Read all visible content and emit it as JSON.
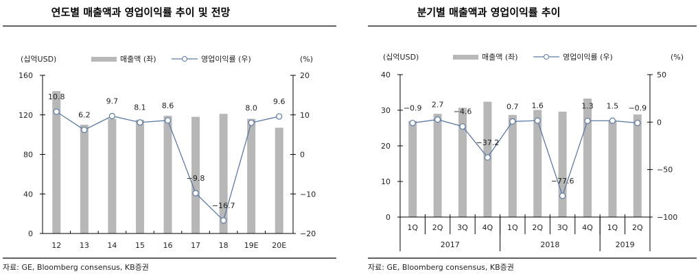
{
  "source_left": "자료: GE, Bloomberg consensus, KB증권",
  "source_right": "자료: GE, Bloomberg consensus, KB증권",
  "colors": {
    "bar": "#b7b7b7",
    "line": "#5b7aa3",
    "marker_fill": "#ffffff"
  },
  "chart_data": [
    {
      "type": "bar+line",
      "title": "연도별 매출액과 영업이익률 추이 및 전망",
      "y_left_unit": "(십억USD)",
      "y_right_unit": "(%)",
      "legend": [
        "매출액 (좌)",
        "영업이익률 (우)"
      ],
      "legend_placement": "top",
      "categories": [
        "12",
        "13",
        "14",
        "15",
        "16",
        "17",
        "18",
        "19E",
        "20E"
      ],
      "series": [
        {
          "name": "매출액 (좌)",
          "axis": "left",
          "values": [
            144,
            110,
            116,
            115,
            119,
            118,
            121,
            116,
            107
          ]
        },
        {
          "name": "영업이익률 (우)",
          "axis": "right",
          "values": [
            10.8,
            6.2,
            9.7,
            8.1,
            8.6,
            -9.8,
            -16.7,
            8.0,
            9.6
          ],
          "labels": [
            "10.8",
            "6.2",
            "9.7",
            "8.1",
            "8.6",
            "−9.8",
            "−16.7",
            "8.0",
            "9.6"
          ]
        }
      ],
      "ylim_left": [
        0,
        160
      ],
      "yticks_left": [
        "0",
        "40",
        "80",
        "120",
        "160"
      ],
      "ylim_right": [
        -20,
        20
      ],
      "yticks_right": [
        "−20",
        "−10",
        "0",
        "10",
        "20"
      ],
      "grid": false
    },
    {
      "type": "bar+line",
      "title": "분기별 매출액과 영업이익률 추이",
      "y_left_unit": "(십억USD)",
      "y_right_unit": "(%)",
      "legend": [
        "매출액 (좌)",
        "영업이익률 (우)"
      ],
      "legend_placement": "top",
      "categories": [
        "1Q",
        "2Q",
        "3Q",
        "4Q",
        "1Q",
        "2Q",
        "3Q",
        "4Q",
        "1Q",
        "2Q"
      ],
      "groups": [
        {
          "label": "2017",
          "count": 4
        },
        {
          "label": "2018",
          "count": 4
        },
        {
          "label": "2019",
          "count": 2
        }
      ],
      "series": [
        {
          "name": "매출액 (좌)",
          "axis": "left",
          "values": [
            27.0,
            29.0,
            30.7,
            32.4,
            28.7,
            30.1,
            29.6,
            33.3,
            27.1,
            28.8
          ]
        },
        {
          "name": "영업이익률 (우)",
          "axis": "right",
          "values": [
            -0.9,
            2.7,
            -4.6,
            -37.2,
            0.7,
            1.6,
            -77.6,
            1.3,
            1.5,
            -0.9
          ],
          "labels": [
            "−0.9",
            "2.7",
            "−4.6",
            "−37.2",
            "0.7",
            "1.6",
            "−77.6",
            "1.3",
            "1.5",
            "−0.9"
          ]
        }
      ],
      "ylim_left": [
        0,
        40
      ],
      "yticks_left": [
        "0",
        "10",
        "20",
        "30",
        "40"
      ],
      "ylim_right": [
        -100,
        50
      ],
      "yticks_right": [
        "−100",
        "−50",
        "0",
        "50"
      ],
      "grid": false
    }
  ]
}
